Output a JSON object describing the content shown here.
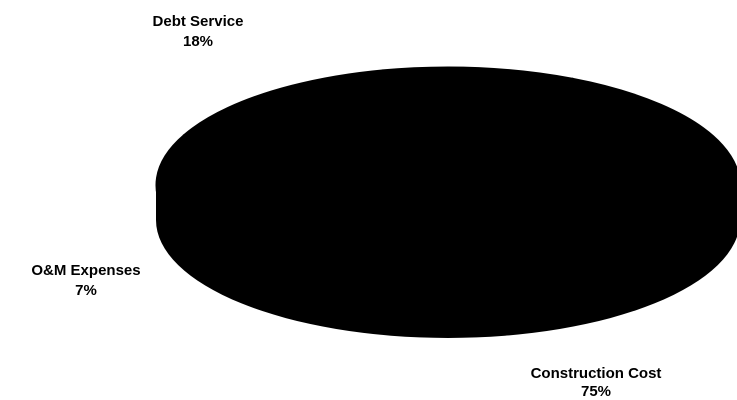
{
  "chart_data": {
    "type": "pie",
    "style": "3d-ellipse",
    "slices": [
      {
        "label": "Debt Service",
        "value": 18,
        "value_label": "18%"
      },
      {
        "label": "O&M Expenses",
        "value": 7,
        "value_label": "7%"
      },
      {
        "label": "Construction Cost",
        "value": 75,
        "value_label": "75%"
      }
    ],
    "colors": {
      "fill": "#000000",
      "background": "#ffffff"
    }
  }
}
